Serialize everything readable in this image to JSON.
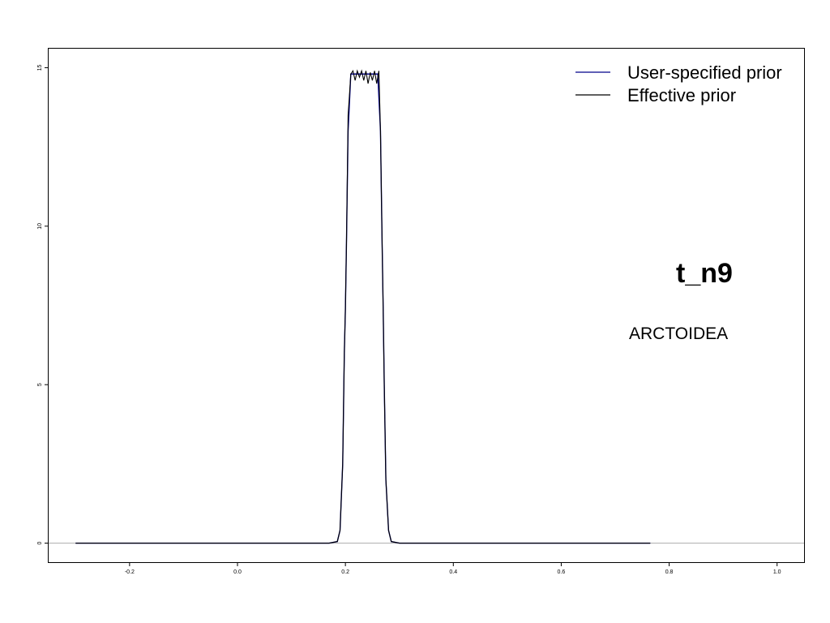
{
  "chart_data": {
    "type": "line",
    "xlim": [
      -0.35,
      1.05
    ],
    "ylim": [
      -0.6,
      15.6
    ],
    "x_ticks": [
      -0.2,
      0.0,
      0.2,
      0.4,
      0.6,
      0.8,
      1.0
    ],
    "x_tick_labels": [
      "-0.2",
      "0.0",
      "0.2",
      "0.4",
      "0.6",
      "0.8",
      "1.0"
    ],
    "y_ticks": [
      0,
      5,
      10,
      15
    ],
    "y_tick_labels": [
      "0",
      "5",
      "10",
      "15"
    ],
    "grid": false,
    "legend_position": "top-right",
    "reference_line": {
      "y": 0,
      "color": "#b0b0b0"
    },
    "series": [
      {
        "name": "User-specified prior",
        "color": "#00008b",
        "x": [
          -0.3,
          0.17,
          0.185,
          0.19,
          0.195,
          0.198,
          0.2,
          0.202,
          0.205,
          0.21,
          0.22,
          0.23,
          0.24,
          0.25,
          0.26,
          0.265,
          0.268,
          0.27,
          0.272,
          0.275,
          0.28,
          0.285,
          0.3,
          0.765
        ],
        "y": [
          0,
          0,
          0.05,
          0.4,
          2.5,
          6.0,
          7.4,
          9.5,
          13.0,
          14.8,
          14.8,
          14.8,
          14.8,
          14.8,
          14.8,
          13.0,
          9.5,
          7.4,
          5.0,
          2.0,
          0.4,
          0.05,
          0,
          0
        ]
      },
      {
        "name": "Effective prior",
        "color": "#000000",
        "x": [
          -0.3,
          0.17,
          0.185,
          0.19,
          0.195,
          0.198,
          0.2,
          0.202,
          0.205,
          0.207,
          0.21,
          0.214,
          0.218,
          0.222,
          0.226,
          0.23,
          0.234,
          0.238,
          0.242,
          0.246,
          0.25,
          0.254,
          0.258,
          0.262,
          0.265,
          0.268,
          0.27,
          0.272,
          0.275,
          0.28,
          0.285,
          0.3,
          0.765
        ],
        "y": [
          0,
          0,
          0.05,
          0.4,
          2.5,
          6.0,
          7.4,
          9.5,
          13.5,
          14.0,
          14.8,
          14.9,
          14.6,
          14.9,
          14.7,
          14.9,
          14.6,
          14.9,
          14.5,
          14.85,
          14.6,
          14.9,
          14.5,
          14.9,
          13.0,
          9.5,
          7.4,
          5.0,
          2.0,
          0.4,
          0.05,
          0,
          0
        ]
      }
    ],
    "annotations": {
      "title": "t_n9",
      "subtitle": "ARCTOIDEA"
    }
  }
}
